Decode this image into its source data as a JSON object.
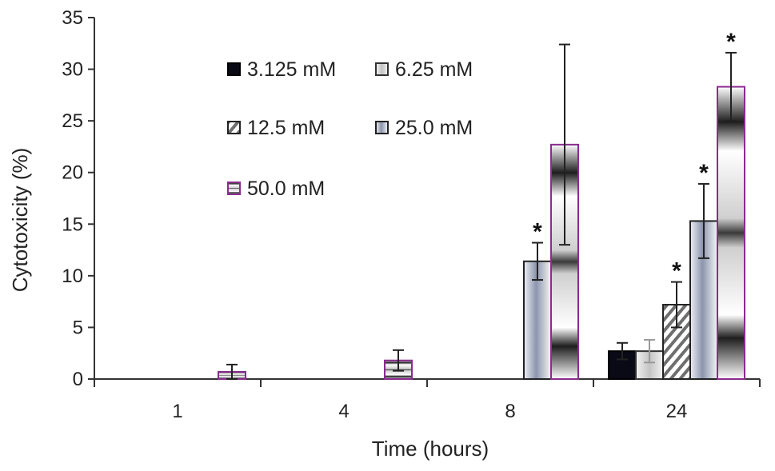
{
  "chart_data": {
    "type": "bar",
    "title": "",
    "xlabel": "Time (hours)",
    "ylabel": "Cytotoxicity (%)",
    "categories": [
      "1",
      "4",
      "8",
      "24"
    ],
    "ylim": [
      0,
      35
    ],
    "yticks": [
      0,
      5,
      10,
      15,
      20,
      25,
      30,
      35
    ],
    "grid": false,
    "legend_position": "top-left inside plot",
    "significance_marker": "*",
    "series": [
      {
        "name": "3.125 mM",
        "values": [
          0,
          0,
          0,
          2.7
        ],
        "errors": [
          0,
          0,
          0,
          0.8
        ],
        "significant": [
          false,
          false,
          false,
          false
        ],
        "color": "#0a0a14"
      },
      {
        "name": "6.25 mM",
        "values": [
          0,
          0,
          0,
          2.7
        ],
        "errors": [
          0,
          0,
          0,
          1.1
        ],
        "significant": [
          false,
          false,
          false,
          false
        ],
        "color": "#d9d9d9"
      },
      {
        "name": "12.5 mM",
        "values": [
          0,
          0,
          0,
          7.2
        ],
        "errors": [
          0,
          0,
          0,
          2.2
        ],
        "significant": [
          false,
          false,
          false,
          true
        ],
        "color": "#808080"
      },
      {
        "name": "25.0 mM",
        "values": [
          0,
          0,
          11.4,
          15.3
        ],
        "errors": [
          0,
          0,
          1.8,
          3.6
        ],
        "significant": [
          false,
          false,
          true,
          true
        ],
        "color": "#9aa3b8"
      },
      {
        "name": "50.0 mM",
        "values": [
          0.7,
          1.8,
          22.7,
          28.3
        ],
        "errors": [
          0.7,
          1.0,
          9.7,
          3.3
        ],
        "significant": [
          false,
          false,
          false,
          true
        ],
        "color": "#8a2b8f"
      }
    ]
  }
}
